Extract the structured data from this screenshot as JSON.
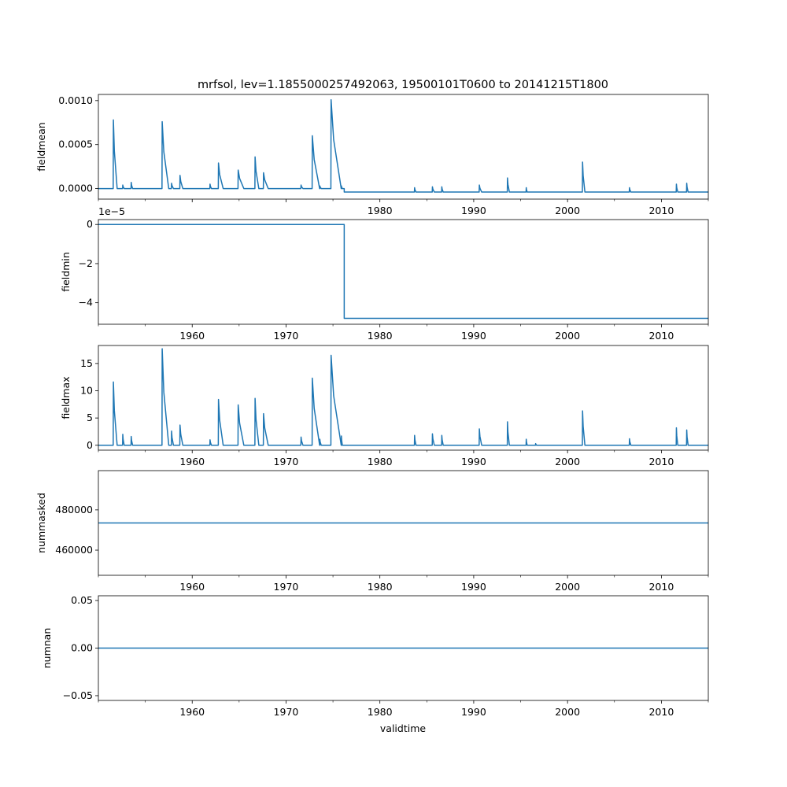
{
  "figure": {
    "title": "mrfsol, lev=1.1855000257492063, 19500101T0600 to 20141215T1800",
    "xlabel": "validtime",
    "line_color": "#1f77b4"
  },
  "chart_data": [
    {
      "type": "line",
      "ylabel": "fieldmean",
      "ylim": [
        -0.00012,
        0.00107
      ],
      "xlim": [
        1950.0,
        2015.0
      ],
      "yticks": [
        0.0,
        0.0005,
        0.001
      ],
      "ytick_labels": [
        "0.0000",
        "0.0005",
        "0.0010"
      ],
      "xticks": [
        1960,
        1970,
        1980,
        1990,
        2000,
        2010
      ],
      "xtick_labels": [
        "1980",
        "1990",
        "2000",
        "2010"
      ],
      "show_xtick_labels": [
        false,
        false,
        true,
        true,
        true,
        true
      ],
      "offset_text": "",
      "baseline": [
        [
          1950.0,
          0.0
        ],
        [
          1976.2,
          0.0
        ],
        [
          1976.2,
          -4e-05
        ],
        [
          2015.0,
          -4e-05
        ]
      ],
      "spikes": [
        {
          "x": 1951.6,
          "peak": 0.00078,
          "width": 0.4
        },
        {
          "x": 1952.6,
          "peak": 4e-05,
          "width": 0.15
        },
        {
          "x": 1953.5,
          "peak": 7e-05,
          "width": 0.15
        },
        {
          "x": 1956.8,
          "peak": 0.00076,
          "width": 0.7
        },
        {
          "x": 1957.8,
          "peak": 6e-05,
          "width": 0.2
        },
        {
          "x": 1958.7,
          "peak": 0.00015,
          "width": 0.3
        },
        {
          "x": 1961.9,
          "peak": 5e-05,
          "width": 0.15
        },
        {
          "x": 1962.8,
          "peak": 0.00029,
          "width": 0.5
        },
        {
          "x": 1964.9,
          "peak": 0.00021,
          "width": 0.6
        },
        {
          "x": 1966.7,
          "peak": 0.00036,
          "width": 0.4
        },
        {
          "x": 1967.6,
          "peak": 0.00018,
          "width": 0.5
        },
        {
          "x": 1971.6,
          "peak": 4e-05,
          "width": 0.2
        },
        {
          "x": 1972.8,
          "peak": 0.0006,
          "width": 0.8
        },
        {
          "x": 1973.6,
          "peak": 3e-05,
          "width": 0.15
        },
        {
          "x": 1974.8,
          "peak": 0.00101,
          "width": 1.1
        },
        {
          "x": 1975.9,
          "peak": 3e-05,
          "width": 0.1
        },
        {
          "x": 1983.7,
          "peak": 1e-05,
          "width": 0.15
        },
        {
          "x": 1985.6,
          "peak": 2e-05,
          "width": 0.2
        },
        {
          "x": 1986.6,
          "peak": 2e-05,
          "width": 0.15
        },
        {
          "x": 1990.6,
          "peak": 4e-05,
          "width": 0.25
        },
        {
          "x": 1993.6,
          "peak": 0.00012,
          "width": 0.2
        },
        {
          "x": 1995.6,
          "peak": 1e-05,
          "width": 0.1
        },
        {
          "x": 2001.6,
          "peak": 0.0003,
          "width": 0.25
        },
        {
          "x": 2006.6,
          "peak": 1e-05,
          "width": 0.15
        },
        {
          "x": 2011.6,
          "peak": 5e-05,
          "width": 0.15
        },
        {
          "x": 2012.7,
          "peak": 6e-05,
          "width": 0.15
        }
      ]
    },
    {
      "type": "line",
      "ylabel": "fieldmin",
      "ylim": [
        -5.1e-05,
        2.5e-06
      ],
      "xlim": [
        1950.0,
        2015.0
      ],
      "yticks": [
        0.0,
        -2e-05,
        -4e-05
      ],
      "ytick_labels": [
        "0",
        "−2",
        "−4"
      ],
      "xticks": [
        1960,
        1970,
        1980,
        1990,
        2000,
        2010
      ],
      "xtick_labels": [
        "1960",
        "1970",
        "1980",
        "1990",
        "2000",
        "2010"
      ],
      "show_xtick_labels": [
        true,
        true,
        true,
        true,
        true,
        true
      ],
      "offset_text": "1e−5",
      "baseline": [
        [
          1950.0,
          0.0
        ],
        [
          1976.2,
          0.0
        ],
        [
          1976.2,
          -4.8e-05
        ],
        [
          2015.0,
          -4.8e-05
        ]
      ],
      "spikes": []
    },
    {
      "type": "line",
      "ylabel": "fieldmax",
      "ylim": [
        -0.9,
        18.3
      ],
      "xlim": [
        1950.0,
        2015.0
      ],
      "yticks": [
        0,
        5,
        10,
        15
      ],
      "ytick_labels": [
        "0",
        "5",
        "10",
        "15"
      ],
      "xticks": [
        1960,
        1970,
        1980,
        1990,
        2000,
        2010
      ],
      "xtick_labels": [
        "1960",
        "1970",
        "1980",
        "1990",
        "2000",
        "2010"
      ],
      "show_xtick_labels": [
        true,
        true,
        true,
        true,
        true,
        true
      ],
      "offset_text": "",
      "baseline": [
        [
          1950.0,
          0.0
        ],
        [
          2015.0,
          0.0
        ]
      ],
      "spikes": [
        {
          "x": 1951.6,
          "peak": 11.6,
          "width": 0.4
        },
        {
          "x": 1952.6,
          "peak": 2.0,
          "width": 0.15
        },
        {
          "x": 1953.5,
          "peak": 1.6,
          "width": 0.15
        },
        {
          "x": 1956.8,
          "peak": 17.7,
          "width": 0.7
        },
        {
          "x": 1957.8,
          "peak": 2.6,
          "width": 0.2
        },
        {
          "x": 1958.7,
          "peak": 3.7,
          "width": 0.3
        },
        {
          "x": 1961.9,
          "peak": 1.0,
          "width": 0.15
        },
        {
          "x": 1962.8,
          "peak": 8.4,
          "width": 0.5
        },
        {
          "x": 1964.9,
          "peak": 7.4,
          "width": 0.6
        },
        {
          "x": 1966.7,
          "peak": 8.6,
          "width": 0.4
        },
        {
          "x": 1967.6,
          "peak": 5.8,
          "width": 0.5
        },
        {
          "x": 1971.6,
          "peak": 1.5,
          "width": 0.2
        },
        {
          "x": 1972.8,
          "peak": 12.3,
          "width": 0.8
        },
        {
          "x": 1973.6,
          "peak": 1.1,
          "width": 0.15
        },
        {
          "x": 1974.8,
          "peak": 16.5,
          "width": 1.1
        },
        {
          "x": 1975.9,
          "peak": 1.7,
          "width": 0.1
        },
        {
          "x": 1983.7,
          "peak": 1.8,
          "width": 0.15
        },
        {
          "x": 1985.6,
          "peak": 2.1,
          "width": 0.2
        },
        {
          "x": 1986.6,
          "peak": 1.8,
          "width": 0.15
        },
        {
          "x": 1990.6,
          "peak": 3.0,
          "width": 0.25
        },
        {
          "x": 1993.6,
          "peak": 4.3,
          "width": 0.2
        },
        {
          "x": 1995.6,
          "peak": 1.1,
          "width": 0.1
        },
        {
          "x": 1996.6,
          "peak": 0.3,
          "width": 0.1
        },
        {
          "x": 2001.6,
          "peak": 6.3,
          "width": 0.25
        },
        {
          "x": 2006.6,
          "peak": 1.2,
          "width": 0.15
        },
        {
          "x": 2011.6,
          "peak": 3.2,
          "width": 0.15
        },
        {
          "x": 2012.7,
          "peak": 2.8,
          "width": 0.15
        }
      ]
    },
    {
      "type": "line",
      "ylabel": "nummasked",
      "ylim": [
        447500,
        499500
      ],
      "xlim": [
        1950.0,
        2015.0
      ],
      "yticks": [
        460000,
        480000
      ],
      "ytick_labels": [
        "460000",
        "480000"
      ],
      "xticks": [
        1960,
        1970,
        1980,
        1990,
        2000,
        2010
      ],
      "xtick_labels": [
        "1960",
        "1970",
        "1980",
        "1990",
        "2000",
        "2010"
      ],
      "show_xtick_labels": [
        true,
        true,
        true,
        true,
        true,
        true
      ],
      "offset_text": "",
      "baseline": [
        [
          1950.0,
          473500
        ],
        [
          2015.0,
          473500
        ]
      ],
      "spikes": []
    },
    {
      "type": "line",
      "ylabel": "numnan",
      "ylim": [
        -0.055,
        0.055
      ],
      "xlim": [
        1950.0,
        2015.0
      ],
      "yticks": [
        -0.05,
        0.0,
        0.05
      ],
      "ytick_labels": [
        "−0.05",
        "0.00",
        "0.05"
      ],
      "xticks": [
        1960,
        1970,
        1980,
        1990,
        2000,
        2010
      ],
      "xtick_labels": [
        "1960",
        "1970",
        "1980",
        "1990",
        "2000",
        "2010"
      ],
      "show_xtick_labels": [
        true,
        true,
        true,
        true,
        true,
        true
      ],
      "offset_text": "",
      "baseline": [
        [
          1950.0,
          0.0
        ],
        [
          2015.0,
          0.0
        ]
      ],
      "spikes": []
    }
  ]
}
